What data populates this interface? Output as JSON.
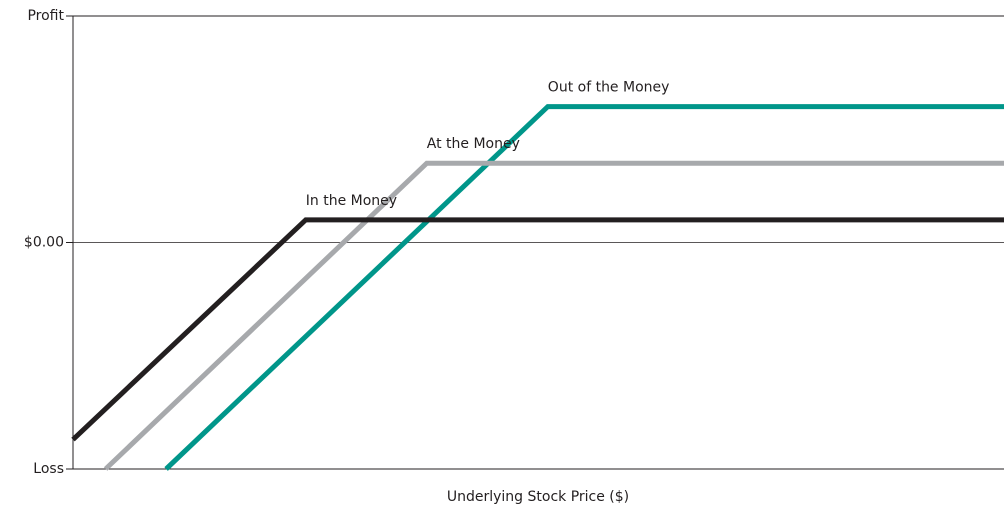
{
  "chart_data": {
    "type": "line",
    "xlabel": "Underlying Stock Price ($)",
    "xlim": [
      0,
      100
    ],
    "ylim": [
      -10,
      10
    ],
    "yticks": [
      {
        "value": 10,
        "label": "Profit"
      },
      {
        "value": 0,
        "label": "$0.00"
      },
      {
        "value": -10,
        "label": "Loss"
      }
    ],
    "series": [
      {
        "name": "Out of the Money",
        "color": "#00968a",
        "x": [
          10,
          51,
          100
        ],
        "values": [
          -10,
          6.0,
          6.0
        ]
      },
      {
        "name": "At the Money",
        "color": "#a7a9ac",
        "x": [
          3.5,
          38,
          100
        ],
        "values": [
          -10,
          3.5,
          3.5
        ]
      },
      {
        "name": "In the Money",
        "color": "#231f20",
        "x": [
          0,
          25,
          100
        ],
        "values": [
          -8.7,
          1.0,
          1.0
        ]
      }
    ]
  }
}
